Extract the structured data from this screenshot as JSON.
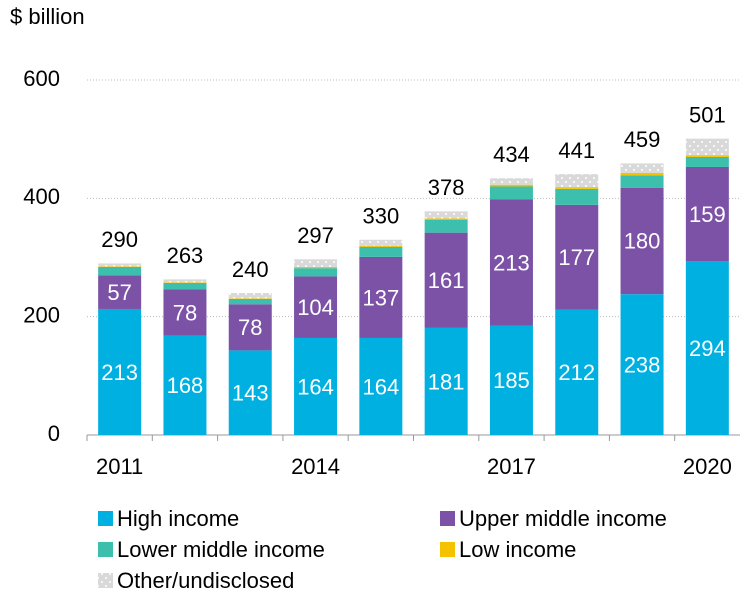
{
  "chart_data": {
    "type": "stacked_bar",
    "y_axis_label": "$ billion",
    "categories": [
      "2011",
      null,
      null,
      "2014",
      null,
      null,
      "2017",
      null,
      null,
      "2020"
    ],
    "series": [
      {
        "name": "High income",
        "color": "#00b0e0",
        "data_labels": true,
        "values": [
          213,
          168,
          143,
          164,
          164,
          181,
          185,
          212,
          238,
          294
        ]
      },
      {
        "name": "Upper middle income",
        "color": "#7b52a6",
        "data_labels": true,
        "values": [
          57,
          78,
          78,
          104,
          137,
          161,
          213,
          177,
          180,
          159
        ]
      },
      {
        "name": "Lower middle income",
        "color": "#3cbfad",
        "values": [
          14,
          11,
          9,
          14,
          17,
          22,
          22,
          27,
          21,
          17
        ]
      },
      {
        "name": "Low income",
        "color": "#f5c200",
        "values": [
          1,
          1,
          1,
          2,
          2,
          2,
          3,
          3,
          4,
          3
        ]
      },
      {
        "name": "Other/undisclosed",
        "color": "#d9d9d9",
        "pattern": "dots",
        "values": [
          5,
          5,
          9,
          13,
          10,
          12,
          11,
          22,
          16,
          28
        ]
      }
    ],
    "totals": [
      290,
      263,
      240,
      297,
      330,
      378,
      434,
      441,
      459,
      501
    ],
    "ylim": [
      0,
      600
    ],
    "yticks": [
      0,
      200,
      400,
      600
    ],
    "grid": true
  }
}
